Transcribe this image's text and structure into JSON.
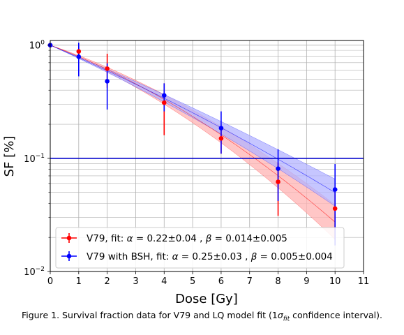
{
  "chart_data": {
    "type": "scatter",
    "xlabel": "Dose [Gy]",
    "ylabel": "SF [%]",
    "xlim": [
      0,
      11
    ],
    "ylim": [
      0.01,
      1.1
    ],
    "y_scale": "log",
    "grid": true,
    "legend_position": "lower-left",
    "x_ticks": [
      "0",
      "1",
      "2",
      "3",
      "4",
      "5",
      "6",
      "7",
      "8",
      "9",
      "10",
      "11"
    ],
    "y_ticks": [
      {
        "value": 1,
        "label": "10",
        "sup": "0"
      },
      {
        "value": 0.1,
        "label": "10",
        "sup": "−1"
      },
      {
        "value": 0.01,
        "label": "10",
        "sup": "−2"
      }
    ],
    "reference_line": {
      "y": 0.1,
      "color": "#0000cc"
    },
    "series": [
      {
        "name": "V79, fit: α = 0.22±0.04 , β = 0.014±0.005",
        "legend_parts": {
          "pre": "V79, fit: ",
          "alpha": "α",
          "alpha_val": " = 0.22±0.04 , ",
          "beta": "β",
          "beta_val": " = 0.014±0.005"
        },
        "color": "#ff0000",
        "band_color": "#ffb3b3",
        "points": [
          {
            "x": 0,
            "y": 1.0,
            "yerr_low": 1.0,
            "yerr_high": 1.0
          },
          {
            "x": 1,
            "y": 0.88,
            "yerr_low": 0.78,
            "yerr_high": 0.98
          },
          {
            "x": 2,
            "y": 0.62,
            "yerr_low": 0.42,
            "yerr_high": 0.84
          },
          {
            "x": 4,
            "y": 0.31,
            "yerr_low": 0.16,
            "yerr_high": 0.46
          },
          {
            "x": 6,
            "y": 0.15,
            "yerr_low": 0.11,
            "yerr_high": 0.19
          },
          {
            "x": 8,
            "y": 0.062,
            "yerr_low": 0.031,
            "yerr_high": 0.092
          },
          {
            "x": 10,
            "y": 0.036,
            "yerr_low": 0.019,
            "yerr_high": 0.052
          }
        ],
        "fit": {
          "alpha": 0.22,
          "beta": 0.014,
          "alpha_err": 0.04,
          "beta_err": 0.005
        }
      },
      {
        "name": "V79 with BSH, fit: α = 0.25±0.03 , β = 0.005±0.004",
        "legend_parts": {
          "pre": "V79 with BSH, fit: ",
          "alpha": "α",
          "alpha_val": " = 0.25±0.03 , ",
          "beta": "β",
          "beta_val": " = 0.005±0.004"
        },
        "color": "#0000ff",
        "band_color": "#b3b3ff",
        "points": [
          {
            "x": 0,
            "y": 1.0,
            "yerr_low": 1.0,
            "yerr_high": 1.0
          },
          {
            "x": 1,
            "y": 0.79,
            "yerr_low": 0.53,
            "yerr_high": 1.05
          },
          {
            "x": 2,
            "y": 0.48,
            "yerr_low": 0.27,
            "yerr_high": 0.69
          },
          {
            "x": 4,
            "y": 0.36,
            "yerr_low": 0.26,
            "yerr_high": 0.46
          },
          {
            "x": 6,
            "y": 0.185,
            "yerr_low": 0.11,
            "yerr_high": 0.26
          },
          {
            "x": 8,
            "y": 0.081,
            "yerr_low": 0.042,
            "yerr_high": 0.12
          },
          {
            "x": 10,
            "y": 0.053,
            "yerr_low": 0.017,
            "yerr_high": 0.089
          }
        ],
        "fit": {
          "alpha": 0.25,
          "beta": 0.005,
          "alpha_err": 0.03,
          "beta_err": 0.004
        }
      }
    ]
  },
  "caption": {
    "prefix": "Figure 1. Survival fraction data for V79 and LQ model fit (1",
    "sigma": "σ",
    "sub": "fit",
    "suffix": " confidence interval)."
  }
}
